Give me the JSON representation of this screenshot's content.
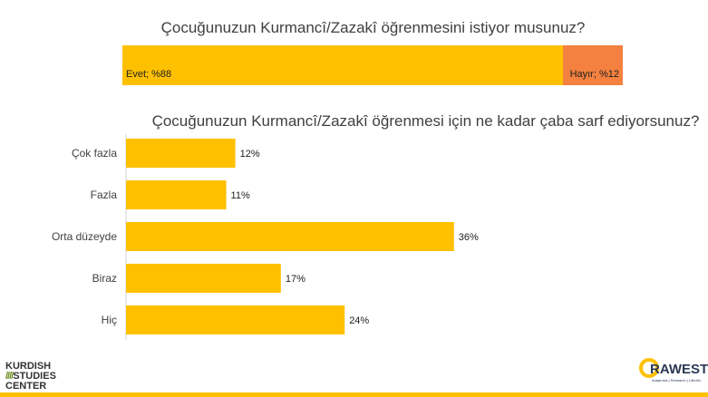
{
  "chart_data": [
    {
      "type": "bar",
      "orientation": "horizontal-stacked",
      "title": "Çocuğunuzun Kurmancî/Zazakî öğrenmesini istiyor musunuz?",
      "categories": [
        "Evet",
        "Hayır"
      ],
      "values": [
        88,
        12
      ],
      "data_labels": [
        "Evet; %88",
        "Hayır; %12"
      ],
      "colors": [
        "#FFC000",
        "#F4813F"
      ]
    },
    {
      "type": "bar",
      "orientation": "horizontal",
      "title": "Çocuğunuzun Kurmancî/Zazakî öğrenmesi için ne kadar çaba sarf ediyorsunuz?",
      "categories": [
        "Çok fazla",
        "Fazla",
        "Orta düzeyde",
        "Biraz",
        "Hiç"
      ],
      "values": [
        12,
        11,
        36,
        17,
        24
      ],
      "data_labels": [
        "12%",
        "11%",
        "36%",
        "17%",
        "24%"
      ],
      "color": "#FFC000",
      "xlim": [
        0,
        45
      ],
      "grid": false
    }
  ],
  "logos": {
    "left": [
      "KURDISH",
      "STUDIES",
      "CENTER"
    ],
    "left_slashes": "////",
    "right_word": "RAWEST",
    "right_tagline": "Araştırma | Research | Lêkolîn"
  }
}
